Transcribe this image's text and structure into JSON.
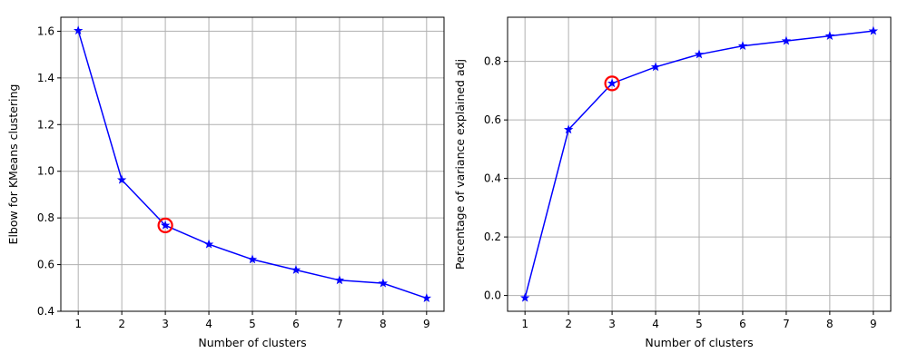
{
  "chart_data": [
    {
      "type": "line",
      "title": "",
      "xlabel": "Number of clusters",
      "ylabel": "Elbow for KMeans clustering",
      "x": [
        1,
        2,
        3,
        4,
        5,
        6,
        7,
        8,
        9
      ],
      "series": [
        {
          "values": [
            1.603,
            0.963,
            0.768,
            0.687,
            0.622,
            0.577,
            0.533,
            0.52,
            0.456
          ],
          "color": "#0000ff",
          "marker": "star"
        }
      ],
      "xticks": [
        "1",
        "2",
        "3",
        "4",
        "5",
        "6",
        "7",
        "8",
        "9"
      ],
      "yticks": [
        "0.4",
        "0.6",
        "0.8",
        "1.0",
        "1.2",
        "1.4",
        "1.6"
      ],
      "ytick_values": [
        0.4,
        0.6,
        0.8,
        1.0,
        1.2,
        1.4,
        1.6
      ],
      "xlim": [
        0.6,
        9.4
      ],
      "ylim": [
        0.4,
        1.66
      ],
      "grid": true,
      "highlight": {
        "x": 3,
        "y": 0.768,
        "color": "#ff0000"
      }
    },
    {
      "type": "line",
      "title": "",
      "xlabel": "Number of clusters",
      "ylabel": "Percentage of variance explained adj",
      "x": [
        1,
        2,
        3,
        4,
        5,
        6,
        7,
        8,
        9
      ],
      "series": [
        {
          "values": [
            -0.008,
            0.567,
            0.725,
            0.781,
            0.824,
            0.853,
            0.87,
            0.887,
            0.904
          ],
          "color": "#0000ff",
          "marker": "star"
        }
      ],
      "xticks": [
        "1",
        "2",
        "3",
        "4",
        "5",
        "6",
        "7",
        "8",
        "9"
      ],
      "yticks": [
        "0.0",
        "0.2",
        "0.4",
        "0.6",
        "0.8"
      ],
      "ytick_values": [
        0.0,
        0.2,
        0.4,
        0.6,
        0.8
      ],
      "xlim": [
        0.6,
        9.4
      ],
      "ylim": [
        -0.054,
        0.951
      ],
      "grid": true,
      "highlight": {
        "x": 3,
        "y": 0.725,
        "color": "#ff0000"
      }
    }
  ]
}
